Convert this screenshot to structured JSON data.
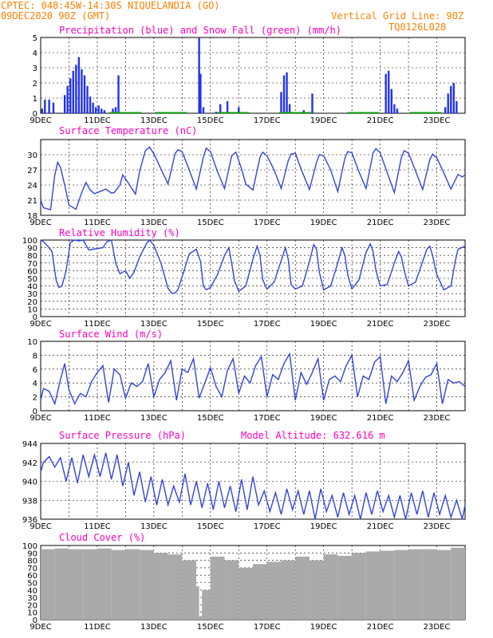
{
  "header": {
    "station": "CPTEC:  048:45W-14:30S  NIQUELANDIA (GO)",
    "run": "09DEC2020 90Z (GMT)",
    "grid_note": "Vertical Grid Line: 90Z",
    "code": "TQ0126L028"
  },
  "colors": {
    "header": "#ff8000",
    "title": "#ff00c0",
    "line": "#3344dd",
    "bar": "#2233ee",
    "snow": "#00aa00",
    "cloud": "#aaaaaa"
  },
  "x_labels": [
    "9DEC",
    "11DEC",
    "13DEC",
    "15DEC",
    "17DEC",
    "19DEC",
    "21DEC",
    "23DEC"
  ],
  "chart_data": [
    {
      "type": "bar",
      "title": "Precipitation (blue) and Snow Fall (green) (mm/h)",
      "x_range_days": [
        0,
        15
      ],
      "ylim": [
        0,
        5
      ],
      "yticks": [
        0,
        1,
        2,
        3,
        4,
        5
      ],
      "series": [
        {
          "name": "Precipitation",
          "x": [
            0.05,
            0.15,
            0.3,
            0.45,
            0.85,
            0.95,
            1.05,
            1.15,
            1.25,
            1.35,
            1.45,
            1.55,
            1.65,
            1.75,
            1.85,
            1.95,
            2.05,
            2.15,
            2.25,
            2.55,
            2.65,
            2.75,
            5.6,
            5.65,
            5.75,
            6.2,
            6.35,
            6.6,
            7.0,
            8.5,
            8.6,
            8.7,
            8.8,
            9.3,
            9.6,
            12.2,
            12.3,
            12.4,
            12.5,
            12.6,
            14.3,
            14.4,
            14.5,
            14.6,
            14.7
          ],
          "values": [
            0.3,
            0.9,
            0.9,
            0.7,
            1.2,
            1.8,
            2.3,
            2.8,
            3.2,
            3.7,
            2.9,
            2.5,
            1.8,
            1.1,
            0.7,
            0.4,
            0.5,
            0.3,
            0.2,
            0.3,
            0.4,
            2.5,
            5.0,
            2.6,
            0.4,
            0.1,
            0.6,
            0.8,
            0.4,
            1.4,
            2.5,
            2.7,
            0.6,
            0.2,
            1.3,
            2.6,
            2.8,
            1.6,
            0.6,
            0.3,
            0.4,
            1.3,
            1.8,
            2.0,
            0.8
          ]
        },
        {
          "name": "Snow Fall",
          "x": [
            3.0,
            4.6,
            6.8,
            9.0,
            11.4,
            13.6
          ],
          "values": [
            0.08,
            0.08,
            0.08,
            0.08,
            0.08,
            0.08
          ]
        }
      ]
    },
    {
      "type": "line",
      "title": "Surface Temperature (nC)",
      "x_range_days": [
        0,
        15
      ],
      "ylim": [
        18,
        33
      ],
      "yticks": [
        18,
        21,
        24,
        27,
        30
      ],
      "series": [
        {
          "name": "",
          "x": [
            0,
            0.1,
            0.35,
            0.5,
            0.6,
            0.7,
            0.85,
            1.0,
            1.25,
            1.45,
            1.6,
            1.75,
            1.9,
            2.05,
            2.3,
            2.5,
            2.6,
            2.8,
            2.9,
            3.1,
            3.35,
            3.5,
            3.7,
            3.85,
            4.0,
            4.25,
            4.5,
            4.75,
            4.85,
            5.0,
            5.25,
            5.5,
            5.75,
            5.85,
            6.0,
            6.25,
            6.5,
            6.75,
            6.9,
            7.1,
            7.25,
            7.5,
            7.75,
            7.85,
            8.0,
            8.25,
            8.5,
            8.75,
            8.85,
            9.0,
            9.25,
            9.5,
            9.75,
            9.85,
            10.0,
            10.25,
            10.5,
            10.75,
            10.85,
            11.0,
            11.25,
            11.5,
            11.75,
            11.85,
            12.0,
            12.25,
            12.5,
            12.75,
            12.85,
            13.0,
            13.25,
            13.5,
            13.75,
            13.85,
            14.0,
            14.25,
            14.5,
            14.75,
            14.9,
            15.0
          ],
          "values": [
            21,
            19.5,
            19.1,
            26,
            28.5,
            27.5,
            24,
            20,
            19.2,
            22.5,
            24.5,
            23,
            22.3,
            22.6,
            23.2,
            22.4,
            22.5,
            24,
            26,
            24.4,
            22.2,
            26.8,
            30.8,
            31.5,
            30.2,
            27.2,
            24.2,
            30.2,
            31,
            30.6,
            27,
            23.2,
            29.5,
            31.3,
            30.6,
            26.6,
            23.3,
            29.8,
            30.5,
            27.2,
            24.2,
            23,
            29.5,
            30.5,
            29.8,
            27,
            23.3,
            28.8,
            30.1,
            30.3,
            26.5,
            23.1,
            28.5,
            30,
            29.8,
            27,
            22.7,
            29.3,
            30.6,
            30.4,
            26.6,
            23.3,
            30.4,
            31.2,
            30.4,
            26.4,
            22.5,
            29.5,
            30.8,
            30.3,
            26.8,
            23.1,
            29,
            30.1,
            29.4,
            26.4,
            23.2,
            26.1,
            25.6,
            26
          ]
        }
      ]
    },
    {
      "type": "line",
      "title": "Relative Humidity (%)",
      "x_range_days": [
        0,
        15
      ],
      "ylim": [
        0,
        100
      ],
      "yticks": [
        0,
        10,
        20,
        30,
        40,
        50,
        60,
        70,
        80,
        90,
        100
      ],
      "series": [
        {
          "name": "",
          "x": [
            0,
            0.1,
            0.25,
            0.4,
            0.55,
            0.65,
            0.75,
            0.9,
            1.05,
            1.2,
            1.35,
            1.5,
            1.7,
            1.85,
            2.0,
            2.2,
            2.35,
            2.5,
            2.65,
            2.8,
            3.0,
            3.15,
            3.3,
            3.5,
            3.75,
            3.85,
            4.0,
            4.25,
            4.5,
            4.65,
            4.75,
            4.85,
            5.0,
            5.25,
            5.5,
            5.65,
            5.75,
            5.85,
            6.0,
            6.25,
            6.5,
            6.65,
            6.75,
            6.85,
            7.0,
            7.25,
            7.5,
            7.65,
            7.75,
            7.85,
            8.0,
            8.25,
            8.5,
            8.65,
            8.75,
            8.85,
            9.0,
            9.25,
            9.5,
            9.65,
            9.75,
            9.85,
            10.0,
            10.25,
            10.5,
            10.65,
            10.75,
            10.85,
            11.0,
            11.25,
            11.5,
            11.65,
            11.75,
            11.85,
            12.0,
            12.25,
            12.5,
            12.65,
            12.75,
            12.85,
            13.0,
            13.25,
            13.5,
            13.65,
            13.75,
            13.85,
            14.0,
            14.25,
            14.5,
            14.65,
            14.75,
            15.0
          ],
          "values": [
            100,
            98,
            92,
            85,
            47,
            38,
            40,
            60,
            97,
            100,
            99,
            100,
            87,
            88,
            89,
            90,
            98,
            100,
            70,
            56,
            60,
            50,
            58,
            78,
            96,
            100,
            93,
            70,
            37,
            30,
            31,
            35,
            52,
            82,
            88,
            72,
            40,
            35,
            38,
            55,
            80,
            90,
            70,
            47,
            33,
            40,
            75,
            92,
            80,
            48,
            36,
            45,
            73,
            90,
            75,
            42,
            36,
            40,
            72,
            94,
            88,
            58,
            35,
            40,
            70,
            90,
            80,
            55,
            36,
            48,
            84,
            95,
            85,
            60,
            40,
            42,
            70,
            85,
            78,
            60,
            40,
            45,
            72,
            88,
            92,
            80,
            55,
            35,
            40,
            72,
            88,
            92
          ]
        }
      ]
    },
    {
      "type": "line",
      "title": "Surface Wind (m/s)",
      "x_range_days": [
        0,
        15
      ],
      "ylim": [
        0,
        10
      ],
      "yticks": [
        0,
        2,
        4,
        6,
        8,
        10
      ],
      "series": [
        {
          "name": "",
          "x": [
            0,
            0.1,
            0.3,
            0.5,
            0.7,
            0.85,
            1.0,
            1.2,
            1.4,
            1.6,
            1.8,
            2.0,
            2.2,
            2.4,
            2.6,
            2.8,
            3.0,
            3.2,
            3.4,
            3.6,
            3.8,
            4.0,
            4.2,
            4.4,
            4.6,
            4.8,
            5.0,
            5.2,
            5.4,
            5.6,
            5.8,
            6.0,
            6.2,
            6.4,
            6.6,
            6.8,
            7.0,
            7.2,
            7.4,
            7.6,
            7.8,
            8.0,
            8.2,
            8.4,
            8.6,
            8.8,
            9.0,
            9.2,
            9.4,
            9.6,
            9.8,
            10.0,
            10.2,
            10.4,
            10.6,
            10.8,
            11.0,
            11.2,
            11.4,
            11.6,
            11.8,
            12.0,
            12.2,
            12.4,
            12.6,
            12.8,
            13.0,
            13.2,
            13.4,
            13.6,
            13.8,
            14.0,
            14.2,
            14.4,
            14.6,
            14.8,
            15.0
          ],
          "values": [
            1.5,
            3.2,
            2.8,
            1.0,
            4.5,
            6.8,
            3.0,
            1.0,
            2.5,
            2.0,
            4.2,
            5.5,
            6.5,
            1.2,
            6.0,
            5.2,
            1.8,
            4.0,
            3.5,
            4.2,
            6.8,
            2.0,
            4.5,
            5.5,
            7.2,
            1.5,
            6.0,
            5.5,
            7.5,
            1.8,
            4.0,
            6.2,
            3.5,
            2.0,
            5.8,
            7.5,
            2.5,
            5.0,
            4.0,
            6.5,
            7.8,
            2.0,
            5.2,
            4.5,
            6.8,
            8.2,
            1.5,
            5.5,
            3.8,
            5.5,
            7.5,
            1.5,
            4.5,
            5.0,
            4.2,
            6.5,
            8.0,
            2.0,
            5.0,
            4.5,
            7.0,
            7.8,
            1.0,
            5.0,
            4.2,
            5.5,
            7.2,
            1.5,
            3.5,
            4.8,
            5.2,
            6.8,
            1.0,
            4.5,
            4.0,
            4.2,
            3.5
          ]
        }
      ]
    },
    {
      "type": "line",
      "title": "Surface Pressure (hPa)",
      "annotation": "Model Altitude: 632.616 m",
      "x_range_days": [
        0,
        15
      ],
      "ylim": [
        936,
        944
      ],
      "yticks": [
        936,
        938,
        940,
        942,
        944
      ],
      "series": [
        {
          "name": "",
          "x": [
            0,
            0.1,
            0.3,
            0.5,
            0.7,
            0.9,
            1.1,
            1.3,
            1.5,
            1.7,
            1.9,
            2.1,
            2.3,
            2.5,
            2.7,
            2.9,
            3.1,
            3.3,
            3.5,
            3.7,
            3.9,
            4.1,
            4.3,
            4.5,
            4.7,
            4.9,
            5.1,
            5.3,
            5.5,
            5.7,
            5.9,
            6.1,
            6.3,
            6.5,
            6.7,
            6.9,
            7.1,
            7.3,
            7.5,
            7.7,
            7.9,
            8.1,
            8.3,
            8.5,
            8.7,
            8.9,
            9.1,
            9.3,
            9.5,
            9.7,
            9.9,
            10.1,
            10.3,
            10.5,
            10.7,
            10.9,
            11.1,
            11.3,
            11.5,
            11.7,
            11.9,
            12.1,
            12.3,
            12.5,
            12.7,
            12.9,
            13.1,
            13.3,
            13.5,
            13.7,
            13.9,
            14.1,
            14.3,
            14.5,
            14.7,
            14.9,
            15.0
          ],
          "values": [
            941.0,
            942.0,
            942.6,
            941.5,
            942.5,
            940.0,
            942.5,
            939.8,
            942.8,
            940.5,
            942.8,
            940.5,
            943.0,
            940.2,
            942.8,
            939.5,
            942.0,
            938.5,
            941.0,
            937.8,
            940.5,
            937.5,
            940.2,
            937.5,
            939.5,
            937.8,
            940.8,
            937.5,
            940.0,
            937.2,
            939.8,
            937.0,
            940.0,
            937.2,
            939.5,
            936.8,
            940.2,
            937.0,
            940.5,
            937.5,
            939.0,
            936.8,
            938.8,
            936.5,
            939.2,
            937.0,
            939.0,
            936.5,
            939.0,
            936.0,
            939.2,
            936.8,
            938.5,
            936.2,
            938.8,
            936.5,
            938.5,
            936.0,
            938.8,
            936.5,
            939.0,
            936.8,
            938.5,
            936.2,
            938.5,
            936.0,
            938.8,
            936.5,
            939.0,
            936.2,
            938.8,
            936.5,
            938.5,
            936.2,
            938.0,
            935.8,
            937.5
          ]
        }
      ]
    },
    {
      "type": "bar",
      "title": "Cloud Cover (%)",
      "x_range_days": [
        0,
        15
      ],
      "ylim": [
        0,
        100
      ],
      "yticks": [
        0,
        10,
        20,
        30,
        40,
        50,
        60,
        70,
        80,
        90,
        100
      ],
      "series": [
        {
          "name": "",
          "x": [
            0,
            0.5,
            1,
            1.5,
            2,
            2.5,
            3,
            3.5,
            4,
            4.5,
            5,
            5.5,
            5.6,
            5.7,
            6,
            6.5,
            7,
            7.5,
            8,
            8.5,
            9,
            9.5,
            10,
            10.5,
            11,
            11.5,
            12,
            12.5,
            13,
            13.5,
            14,
            14.5,
            15
          ],
          "values": [
            95,
            96,
            95,
            95,
            96,
            94,
            95,
            94,
            90,
            88,
            80,
            45,
            5,
            40,
            85,
            80,
            70,
            75,
            78,
            80,
            85,
            80,
            88,
            86,
            90,
            92,
            93,
            94,
            95,
            95,
            94,
            97,
            98
          ]
        }
      ]
    }
  ]
}
